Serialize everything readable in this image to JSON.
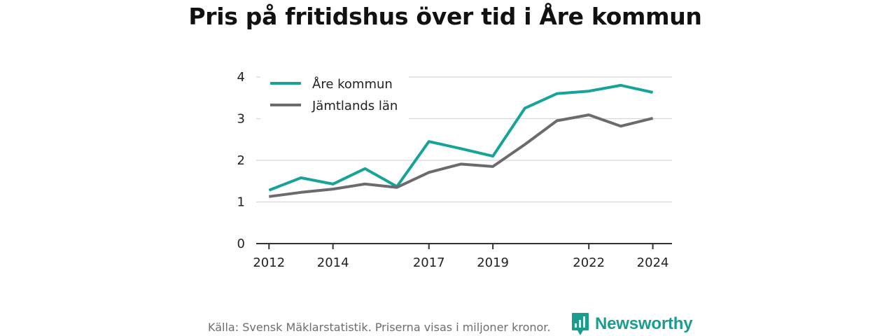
{
  "title": "Pris på fritidshus över tid i Åre kommun",
  "source": "Källa: Svensk Mäklarstatistik. Priserna visas i miljoner kronor.",
  "brand": {
    "name": "Newsworthy",
    "icon": "newsworthy-logo-icon",
    "color": "#1a9d8f"
  },
  "chart_data": {
    "type": "line",
    "title": "Pris på fritidshus över tid i Åre kommun",
    "xlabel": "",
    "ylabel": "",
    "x": [
      2012,
      2013,
      2014,
      2015,
      2016,
      2017,
      2018,
      2019,
      2020,
      2021,
      2022,
      2023,
      2024
    ],
    "xticks": [
      "2012",
      "2014",
      "2017",
      "2019",
      "2022",
      "2024"
    ],
    "yticks": [
      "0",
      "1",
      "2",
      "3",
      "4"
    ],
    "xlim": [
      2011.6,
      2024.6
    ],
    "ylim": [
      0,
      4
    ],
    "grid": true,
    "legend": "top-left",
    "series": [
      {
        "name": "Åre kommun",
        "color": "#17a398",
        "values": [
          1.28,
          1.58,
          1.43,
          1.8,
          1.37,
          2.45,
          2.28,
          2.1,
          3.25,
          3.6,
          3.66,
          3.8,
          3.63
        ]
      },
      {
        "name": "Jämtlands län",
        "color": "#6b6a6f",
        "values": [
          1.13,
          1.23,
          1.31,
          1.43,
          1.35,
          1.71,
          1.91,
          1.85,
          2.38,
          2.95,
          3.09,
          2.82,
          3.01
        ]
      }
    ]
  }
}
